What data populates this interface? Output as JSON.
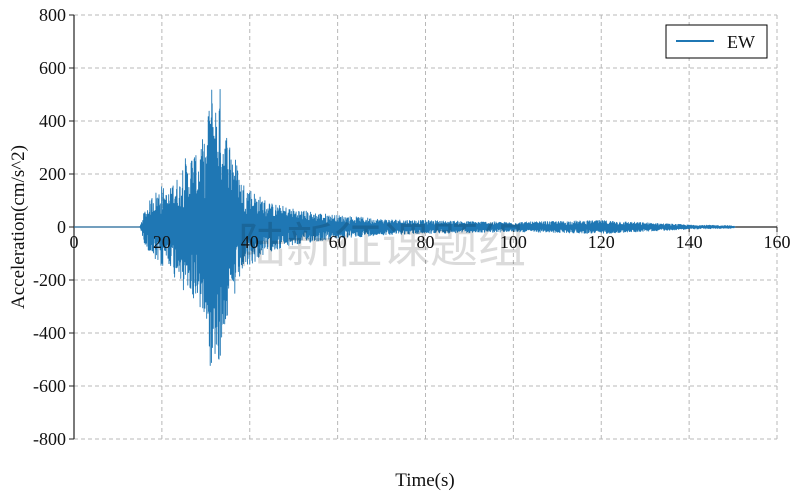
{
  "chart_data": {
    "type": "line",
    "title": "",
    "xlabel": "Time(s)",
    "ylabel": "Acceleration(cm/s^2)",
    "xlim": [
      0,
      160
    ],
    "ylim": [
      -800,
      800
    ],
    "xticks": [
      0,
      20,
      40,
      60,
      80,
      100,
      120,
      140,
      160
    ],
    "yticks": [
      -800,
      -600,
      -400,
      -200,
      0,
      200,
      400,
      600,
      800
    ],
    "grid": true,
    "legend_position": "top-right",
    "series": [
      {
        "name": "EW",
        "color": "#1f77b4",
        "description_points": [
          {
            "t": 0,
            "a": 0
          },
          {
            "t": 15,
            "a": 0
          },
          {
            "t": 16,
            "a": 60
          },
          {
            "t": 17,
            "a": -90
          },
          {
            "t": 18,
            "a": 130
          },
          {
            "t": 19,
            "a": -140
          },
          {
            "t": 20,
            "a": 160
          },
          {
            "t": 21,
            "a": -130
          },
          {
            "t": 22,
            "a": 150
          },
          {
            "t": 23,
            "a": -200
          },
          {
            "t": 24,
            "a": 170
          },
          {
            "t": 25,
            "a": -280
          },
          {
            "t": 26,
            "a": 230
          },
          {
            "t": 27,
            "a": -300
          },
          {
            "t": 28,
            "a": 260
          },
          {
            "t": 29,
            "a": -340
          },
          {
            "t": 30,
            "a": 310
          },
          {
            "t": 30.5,
            "a": -420
          },
          {
            "t": 31,
            "a": 530
          },
          {
            "t": 31.5,
            "a": -560
          },
          {
            "t": 32,
            "a": 520
          },
          {
            "t": 32.5,
            "a": -450
          },
          {
            "t": 33,
            "a": 545
          },
          {
            "t": 33.5,
            "a": -520
          },
          {
            "t": 34,
            "a": 380
          },
          {
            "t": 35,
            "a": -360
          },
          {
            "t": 36,
            "a": 310
          },
          {
            "t": 37,
            "a": -250
          },
          {
            "t": 38,
            "a": 180
          },
          {
            "t": 40,
            "a": -150
          },
          {
            "t": 42,
            "a": 120
          },
          {
            "t": 45,
            "a": -90
          },
          {
            "t": 50,
            "a": 70
          },
          {
            "t": 55,
            "a": -55
          },
          {
            "t": 60,
            "a": 45
          },
          {
            "t": 70,
            "a": -30
          },
          {
            "t": 80,
            "a": 25
          },
          {
            "t": 100,
            "a": -18
          },
          {
            "t": 120,
            "a": 25
          },
          {
            "t": 140,
            "a": -8
          },
          {
            "t": 150,
            "a": 5
          },
          {
            "t": 150.5,
            "a": 0
          }
        ]
      }
    ]
  },
  "watermark_text": "陆新征课题组"
}
